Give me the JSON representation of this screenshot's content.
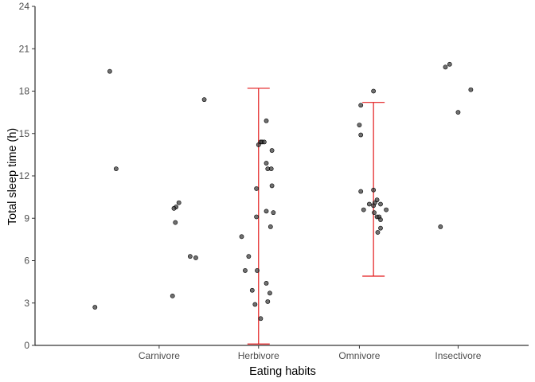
{
  "chart_data": {
    "type": "scatter",
    "title": "",
    "xlabel": "Eating habits",
    "ylabel": "Total sleep time (h)",
    "categories": [
      "Carnivore",
      "Herbivore",
      "Omnivore",
      "Insectivore"
    ],
    "ylim": [
      0,
      24
    ],
    "yticks": [
      0,
      3,
      6,
      9,
      12,
      15,
      18,
      21,
      24
    ],
    "grid": false,
    "legend": "none",
    "colors": {
      "points": "#333333",
      "errorbar": "#e31a1c",
      "axis": "#000000"
    },
    "points": [
      {
        "category": "Carnivore",
        "x": 0.85,
        "y": 2.7
      },
      {
        "category": "Carnivore",
        "x": 1.06,
        "y": 19.4
      },
      {
        "category": "Carnivore",
        "x": 1.15,
        "y": 12.5
      },
      {
        "category": "Carnivore",
        "x": 1.95,
        "y": 3.5
      },
      {
        "category": "Carnivore",
        "x": 2.04,
        "y": 10.1
      },
      {
        "category": "Carnivore",
        "x": 2.0,
        "y": 9.8
      },
      {
        "category": "Carnivore",
        "x": 1.97,
        "y": 9.7
      },
      {
        "category": "Carnivore",
        "x": 1.99,
        "y": 8.7
      },
      {
        "category": "Carnivore",
        "x": 2.2,
        "y": 6.3
      },
      {
        "category": "Carnivore",
        "x": 2.28,
        "y": 6.2
      },
      {
        "category": "Carnivore",
        "x": 2.4,
        "y": 17.4
      },
      {
        "category": "Herbivore",
        "x": 2.93,
        "y": 7.7
      },
      {
        "category": "Herbivore",
        "x": 2.98,
        "y": 5.3
      },
      {
        "category": "Herbivore",
        "x": 3.03,
        "y": 6.3
      },
      {
        "category": "Herbivore",
        "x": 3.08,
        "y": 3.9
      },
      {
        "category": "Herbivore",
        "x": 3.12,
        "y": 2.9
      },
      {
        "category": "Herbivore",
        "x": 3.2,
        "y": 1.9
      },
      {
        "category": "Herbivore",
        "x": 3.15,
        "y": 5.3
      },
      {
        "category": "Herbivore",
        "x": 3.14,
        "y": 11.1
      },
      {
        "category": "Herbivore",
        "x": 3.14,
        "y": 9.1
      },
      {
        "category": "Herbivore",
        "x": 3.17,
        "y": 14.2
      },
      {
        "category": "Herbivore",
        "x": 3.28,
        "y": 4.4
      },
      {
        "category": "Herbivore",
        "x": 3.3,
        "y": 3.1
      },
      {
        "category": "Herbivore",
        "x": 3.33,
        "y": 3.7
      },
      {
        "category": "Herbivore",
        "x": 3.2,
        "y": 14.4
      },
      {
        "category": "Herbivore",
        "x": 3.22,
        "y": 14.4
      },
      {
        "category": "Herbivore",
        "x": 3.25,
        "y": 14.4
      },
      {
        "category": "Herbivore",
        "x": 3.28,
        "y": 15.9
      },
      {
        "category": "Herbivore",
        "x": 3.28,
        "y": 12.9
      },
      {
        "category": "Herbivore",
        "x": 3.3,
        "y": 12.5
      },
      {
        "category": "Herbivore",
        "x": 3.35,
        "y": 12.5
      },
      {
        "category": "Herbivore",
        "x": 3.36,
        "y": 13.8
      },
      {
        "category": "Herbivore",
        "x": 3.36,
        "y": 11.3
      },
      {
        "category": "Herbivore",
        "x": 3.38,
        "y": 9.4
      },
      {
        "category": "Herbivore",
        "x": 3.28,
        "y": 9.5
      },
      {
        "category": "Herbivore",
        "x": 3.34,
        "y": 8.4
      },
      {
        "category": "Omnivore",
        "x": 4.6,
        "y": 15.6
      },
      {
        "category": "Omnivore",
        "x": 4.62,
        "y": 14.9
      },
      {
        "category": "Omnivore",
        "x": 4.62,
        "y": 17.0
      },
      {
        "category": "Omnivore",
        "x": 4.62,
        "y": 10.9
      },
      {
        "category": "Omnivore",
        "x": 4.66,
        "y": 9.6
      },
      {
        "category": "Omnivore",
        "x": 4.74,
        "y": 10.0
      },
      {
        "category": "Omnivore",
        "x": 4.8,
        "y": 18.0
      },
      {
        "category": "Omnivore",
        "x": 4.8,
        "y": 11.0
      },
      {
        "category": "Omnivore",
        "x": 4.8,
        "y": 9.9
      },
      {
        "category": "Omnivore",
        "x": 4.81,
        "y": 9.4
      },
      {
        "category": "Omnivore",
        "x": 4.82,
        "y": 10.1
      },
      {
        "category": "Omnivore",
        "x": 4.85,
        "y": 10.3
      },
      {
        "category": "Omnivore",
        "x": 4.85,
        "y": 9.1
      },
      {
        "category": "Omnivore",
        "x": 4.88,
        "y": 9.1
      },
      {
        "category": "Omnivore",
        "x": 4.86,
        "y": 8.0
      },
      {
        "category": "Omnivore",
        "x": 4.9,
        "y": 8.9
      },
      {
        "category": "Omnivore",
        "x": 4.9,
        "y": 8.3
      },
      {
        "category": "Omnivore",
        "x": 4.9,
        "y": 10.0
      },
      {
        "category": "Omnivore",
        "x": 4.98,
        "y": 9.6
      },
      {
        "category": "Insectivore",
        "x": 5.75,
        "y": 8.4
      },
      {
        "category": "Insectivore",
        "x": 5.82,
        "y": 19.7
      },
      {
        "category": "Insectivore",
        "x": 5.88,
        "y": 19.9
      },
      {
        "category": "Insectivore",
        "x": 6.0,
        "y": 16.5
      },
      {
        "category": "Insectivore",
        "x": 6.18,
        "y": 18.1
      }
    ],
    "errorbars": [
      {
        "category": "Herbivore",
        "x": 3.17,
        "ymin": 0.1,
        "ymax": 18.2
      },
      {
        "category": "Omnivore",
        "x": 4.8,
        "ymin": 4.9,
        "ymax": 17.2
      }
    ],
    "xticks": [
      {
        "label": "Carnivore",
        "x": 1.76
      },
      {
        "label": "Herbivore",
        "x": 3.17
      },
      {
        "label": "Omnivore",
        "x": 4.6
      },
      {
        "label": "Insectivore",
        "x": 6.0
      }
    ],
    "xrange": [
      0.0,
      7.0
    ]
  }
}
